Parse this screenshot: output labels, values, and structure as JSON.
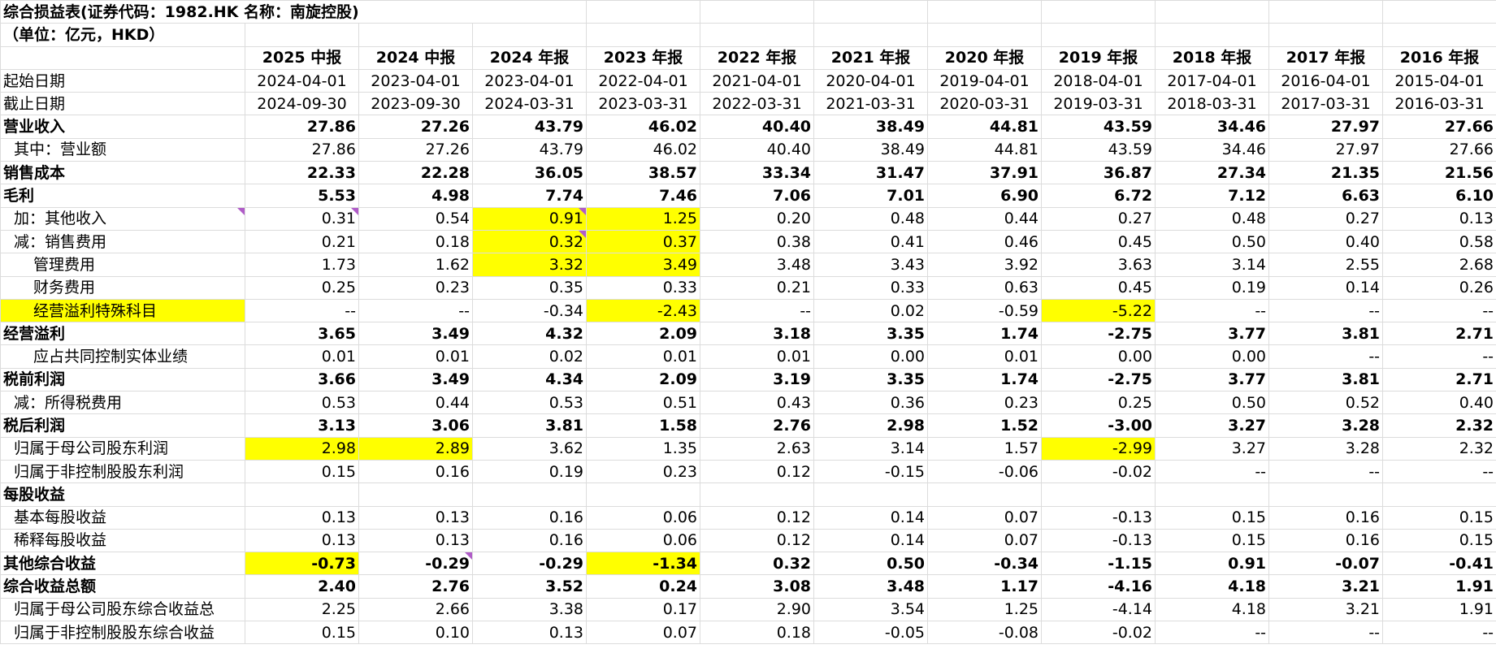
{
  "title": "综合损益表(证券代码：1982.HK 名称：南旋控股)",
  "unit": "（单位：亿元，HKD）",
  "periods": [
    "2025 中报",
    "2024 中报",
    "2024 年报",
    "2023 年报",
    "2022 年报",
    "2021 年报",
    "2020 年报",
    "2019 年报",
    "2018 年报",
    "2017 年报",
    "2016 年报"
  ],
  "rows": [
    {
      "label": "起始日期",
      "style": "date",
      "indent": 0,
      "bold": false,
      "values": [
        "2024-04-01",
        "2023-04-01",
        "2023-04-01",
        "2022-04-01",
        "2021-04-01",
        "2020-04-01",
        "2019-04-01",
        "2018-04-01",
        "2017-04-01",
        "2016-04-01",
        "2015-04-01"
      ]
    },
    {
      "label": "截止日期",
      "style": "date",
      "indent": 0,
      "bold": false,
      "values": [
        "2024-09-30",
        "2023-09-30",
        "2024-03-31",
        "2023-03-31",
        "2022-03-31",
        "2021-03-31",
        "2020-03-31",
        "2019-03-31",
        "2018-03-31",
        "2017-03-31",
        "2016-03-31"
      ]
    },
    {
      "label": "营业收入",
      "indent": 0,
      "bold": true,
      "values": [
        "27.86",
        "27.26",
        "43.79",
        "46.02",
        "40.40",
        "38.49",
        "44.81",
        "43.59",
        "34.46",
        "27.97",
        "27.66"
      ]
    },
    {
      "label": "其中：营业额",
      "indent": 1,
      "bold": false,
      "values": [
        "27.86",
        "27.26",
        "43.79",
        "46.02",
        "40.40",
        "38.49",
        "44.81",
        "43.59",
        "34.46",
        "27.97",
        "27.66"
      ]
    },
    {
      "label": "销售成本",
      "indent": 0,
      "bold": true,
      "values": [
        "22.33",
        "22.28",
        "36.05",
        "38.57",
        "33.34",
        "31.47",
        "37.91",
        "36.87",
        "27.34",
        "21.35",
        "21.56"
      ]
    },
    {
      "label": "毛利",
      "indent": 0,
      "bold": true,
      "values": [
        "5.53",
        "4.98",
        "7.74",
        "7.46",
        "7.06",
        "7.01",
        "6.90",
        "6.72",
        "7.12",
        "6.63",
        "6.10"
      ]
    },
    {
      "label": "加：其他收入",
      "indent": 1,
      "bold": false,
      "labelComment": true,
      "values": [
        "0.31",
        "0.54",
        "0.91",
        "1.25",
        "0.20",
        "0.48",
        "0.44",
        "0.27",
        "0.48",
        "0.27",
        "0.13"
      ],
      "highlight": [
        2,
        3
      ],
      "comments": [
        0,
        2
      ]
    },
    {
      "label": "减：销售费用",
      "indent": 1,
      "bold": false,
      "values": [
        "0.21",
        "0.18",
        "0.32",
        "0.37",
        "0.38",
        "0.41",
        "0.46",
        "0.45",
        "0.50",
        "0.40",
        "0.58"
      ],
      "highlight": [
        2,
        3
      ],
      "comments": [
        2
      ]
    },
    {
      "label": "管理费用",
      "indent": 2,
      "bold": false,
      "values": [
        "1.73",
        "1.62",
        "3.32",
        "3.49",
        "3.48",
        "3.43",
        "3.92",
        "3.63",
        "3.14",
        "2.55",
        "2.68"
      ],
      "highlight": [
        2,
        3
      ]
    },
    {
      "label": "财务费用",
      "indent": 2,
      "bold": false,
      "values": [
        "0.25",
        "0.23",
        "0.35",
        "0.33",
        "0.21",
        "0.33",
        "0.63",
        "0.45",
        "0.19",
        "0.14",
        "0.26"
      ]
    },
    {
      "label": "经营溢利特殊科目",
      "indent": 2,
      "bold": false,
      "labelHighlight": true,
      "values": [
        "--",
        "--",
        "-0.34",
        "-2.43",
        "--",
        "0.02",
        "-0.59",
        "-5.22",
        "--",
        "--",
        "--"
      ],
      "highlight": [
        3,
        7
      ]
    },
    {
      "label": "经营溢利",
      "indent": 0,
      "bold": true,
      "values": [
        "3.65",
        "3.49",
        "4.32",
        "2.09",
        "3.18",
        "3.35",
        "1.74",
        "-2.75",
        "3.77",
        "3.81",
        "2.71"
      ]
    },
    {
      "label": "应占共同控制实体业绩",
      "indent": 3,
      "bold": false,
      "values": [
        "0.01",
        "0.01",
        "0.02",
        "0.01",
        "0.01",
        "0.00",
        "0.01",
        "0.00",
        "0.00",
        "--",
        "--"
      ]
    },
    {
      "label": "税前利润",
      "indent": 0,
      "bold": true,
      "values": [
        "3.66",
        "3.49",
        "4.34",
        "2.09",
        "3.19",
        "3.35",
        "1.74",
        "-2.75",
        "3.77",
        "3.81",
        "2.71"
      ]
    },
    {
      "label": "减：所得税费用",
      "indent": 1,
      "bold": false,
      "values": [
        "0.53",
        "0.44",
        "0.53",
        "0.51",
        "0.43",
        "0.36",
        "0.23",
        "0.25",
        "0.50",
        "0.52",
        "0.40"
      ]
    },
    {
      "label": "税后利润",
      "indent": 0,
      "bold": true,
      "values": [
        "3.13",
        "3.06",
        "3.81",
        "1.58",
        "2.76",
        "2.98",
        "1.52",
        "-3.00",
        "3.27",
        "3.28",
        "2.32"
      ]
    },
    {
      "label": "归属于母公司股东利润",
      "indent": 1,
      "bold": false,
      "values": [
        "2.98",
        "2.89",
        "3.62",
        "1.35",
        "2.63",
        "3.14",
        "1.57",
        "-2.99",
        "3.27",
        "3.28",
        "2.32"
      ],
      "highlight": [
        0,
        1,
        7
      ]
    },
    {
      "label": "归属于非控制股股东利润",
      "indent": 1,
      "bold": false,
      "values": [
        "0.15",
        "0.16",
        "0.19",
        "0.23",
        "0.12",
        "-0.15",
        "-0.06",
        "-0.02",
        "--",
        "--",
        "--"
      ]
    },
    {
      "label": "每股收益",
      "indent": 0,
      "bold": true,
      "values": [
        "",
        "",
        "",
        "",
        "",
        "",
        "",
        "",
        "",
        "",
        ""
      ]
    },
    {
      "label": "基本每股收益",
      "indent": 1,
      "bold": false,
      "values": [
        "0.13",
        "0.13",
        "0.16",
        "0.06",
        "0.12",
        "0.14",
        "0.07",
        "-0.13",
        "0.15",
        "0.16",
        "0.15"
      ]
    },
    {
      "label": "稀释每股收益",
      "indent": 1,
      "bold": false,
      "values": [
        "0.13",
        "0.13",
        "0.16",
        "0.06",
        "0.12",
        "0.14",
        "0.07",
        "-0.13",
        "0.15",
        "0.16",
        "0.15"
      ]
    },
    {
      "label": "其他综合收益",
      "indent": 0,
      "bold": true,
      "values": [
        "-0.73",
        "-0.29",
        "-0.29",
        "-1.34",
        "0.32",
        "0.50",
        "-0.34",
        "-1.15",
        "0.91",
        "-0.07",
        "-0.41"
      ],
      "highlight": [
        0,
        3
      ],
      "comments": [
        1
      ]
    },
    {
      "label": "综合收益总额",
      "indent": 0,
      "bold": true,
      "values": [
        "2.40",
        "2.76",
        "3.52",
        "0.24",
        "3.08",
        "3.48",
        "1.17",
        "-4.16",
        "4.18",
        "3.21",
        "1.91"
      ]
    },
    {
      "label": "归属于母公司股东综合收益总",
      "indent": 1,
      "bold": false,
      "values": [
        "2.25",
        "2.66",
        "3.38",
        "0.17",
        "2.90",
        "3.54",
        "1.25",
        "-4.14",
        "4.18",
        "3.21",
        "1.91"
      ]
    },
    {
      "label": "归属于非控制股股东综合收益",
      "indent": 1,
      "bold": false,
      "values": [
        "0.15",
        "0.10",
        "0.13",
        "0.07",
        "0.18",
        "-0.05",
        "-0.08",
        "-0.02",
        "--",
        "--",
        "--"
      ]
    }
  ]
}
